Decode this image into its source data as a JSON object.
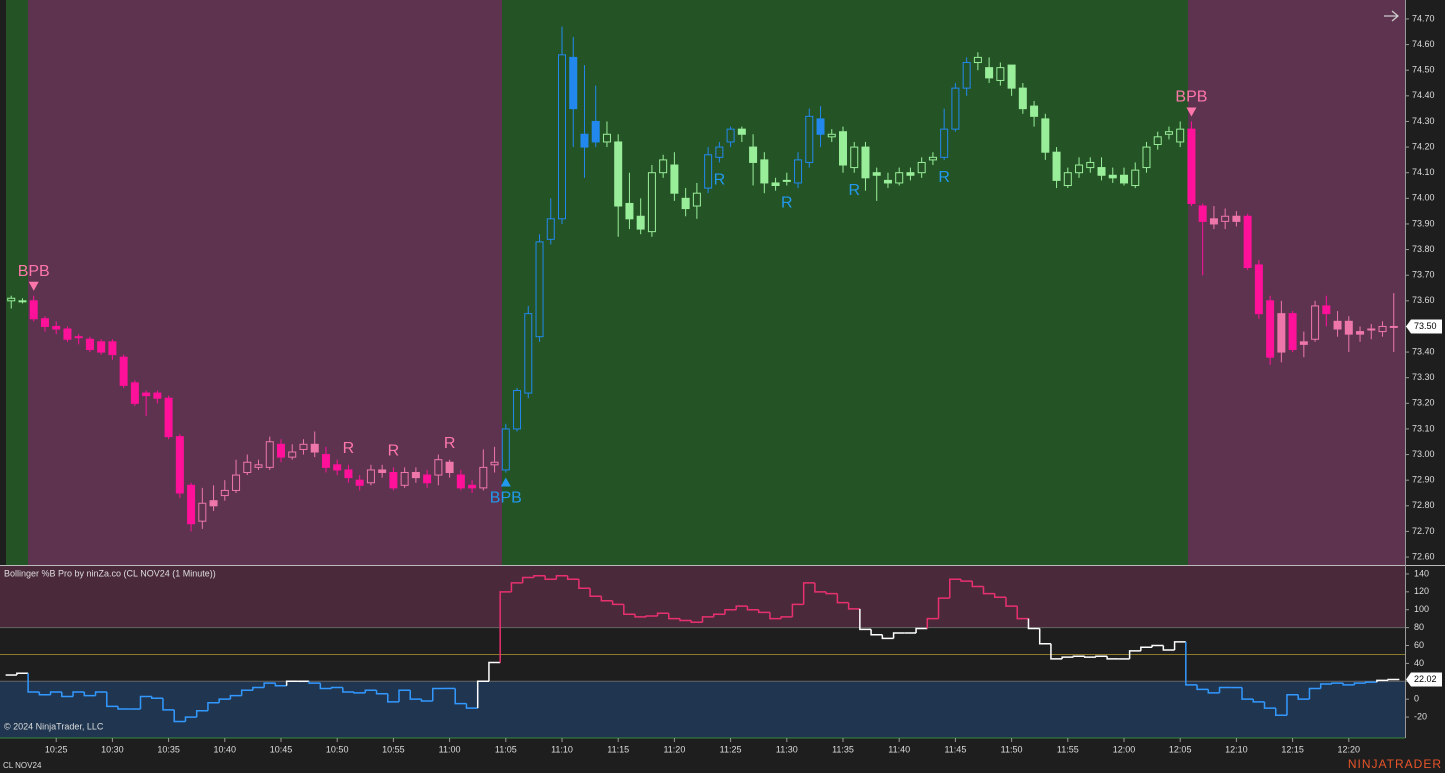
{
  "chart_data": [
    {
      "type": "candlestick",
      "symbol": "CL NOV24",
      "xlim": [
        -1,
        124
      ],
      "ylim": [
        72.569,
        74.774
      ],
      "xticks": [
        {
          "value": 4,
          "label": "10:25"
        },
        {
          "value": 9,
          "label": "10:30"
        },
        {
          "value": 14,
          "label": "10:35"
        },
        {
          "value": 19,
          "label": "10:40"
        },
        {
          "value": 24,
          "label": "10:45"
        },
        {
          "value": 29,
          "label": "10:50"
        },
        {
          "value": 34,
          "label": "10:55"
        },
        {
          "value": 39,
          "label": "11:00"
        },
        {
          "value": 44,
          "label": "11:05"
        },
        {
          "value": 49,
          "label": "11:10"
        },
        {
          "value": 54,
          "label": "11:15"
        },
        {
          "value": 59,
          "label": "11:20"
        },
        {
          "value": 64,
          "label": "11:25"
        },
        {
          "value": 69,
          "label": "11:30"
        },
        {
          "value": 74,
          "label": "11:35"
        },
        {
          "value": 79,
          "label": "11:40"
        },
        {
          "value": 84,
          "label": "11:45"
        },
        {
          "value": 89,
          "label": "11:50"
        },
        {
          "value": 94,
          "label": "11:55"
        },
        {
          "value": 99,
          "label": "12:00"
        },
        {
          "value": 104,
          "label": "12:05"
        },
        {
          "value": 109,
          "label": "12:10"
        },
        {
          "value": 114,
          "label": "12:15"
        },
        {
          "value": 119,
          "label": "12:20"
        }
      ],
      "yticks": [
        {
          "value": 72.6,
          "label": "72.60"
        },
        {
          "value": 72.7,
          "label": "72.70"
        },
        {
          "value": 72.8,
          "label": "72.80"
        },
        {
          "value": 72.9,
          "label": "72.90"
        },
        {
          "value": 73.0,
          "label": "73.00"
        },
        {
          "value": 73.1,
          "label": "73.10"
        },
        {
          "value": 73.2,
          "label": "73.20"
        },
        {
          "value": 73.3,
          "label": "73.30"
        },
        {
          "value": 73.4,
          "label": "73.40"
        },
        {
          "value": 73.5,
          "label": "73.50"
        },
        {
          "value": 73.6,
          "label": "73.60"
        },
        {
          "value": 73.7,
          "label": "73.70"
        },
        {
          "value": 73.8,
          "label": "73.80"
        },
        {
          "value": 73.9,
          "label": "73.90"
        },
        {
          "value": 74.0,
          "label": "74.00"
        },
        {
          "value": 74.1,
          "label": "74.10"
        },
        {
          "value": 74.2,
          "label": "74.20"
        },
        {
          "value": 74.3,
          "label": "74.30"
        },
        {
          "value": 74.4,
          "label": "74.40"
        },
        {
          "value": 74.5,
          "label": "74.50"
        },
        {
          "value": 74.6,
          "label": "74.60"
        },
        {
          "value": 74.7,
          "label": "74.70"
        }
      ],
      "open": [
        73.6,
        73.6,
        73.6,
        73.53,
        73.5,
        73.49,
        73.46,
        73.45,
        73.44,
        73.44,
        73.38,
        73.28,
        73.24,
        73.24,
        73.22,
        73.07,
        72.88,
        72.74,
        72.82,
        72.84,
        72.86,
        72.93,
        72.95,
        72.95,
        73.04,
        72.99,
        73.02,
        73.04,
        73.0,
        72.96,
        72.94,
        72.9,
        72.89,
        72.94,
        72.93,
        72.88,
        72.93,
        72.92,
        72.92,
        72.97,
        72.92,
        72.88,
        72.87,
        72.96,
        72.94,
        73.1,
        73.24,
        73.46,
        73.84,
        73.92,
        74.55,
        74.25,
        74.3,
        74.22,
        74.22,
        73.98,
        73.93,
        73.87,
        74.1,
        74.13,
        74.0,
        73.97,
        74.04,
        74.16,
        74.22,
        74.27,
        74.2,
        74.15,
        74.06,
        74.07,
        74.06,
        74.14,
        74.31,
        74.24,
        74.26,
        74.12,
        74.2,
        74.1,
        74.07,
        74.06,
        74.1,
        74.1,
        74.15,
        74.16,
        74.27,
        74.43,
        74.53,
        74.51,
        74.46,
        74.52,
        74.43,
        74.36,
        74.31,
        74.18,
        74.05,
        74.1,
        74.12,
        74.12,
        74.09,
        74.09,
        74.05,
        74.12,
        74.21,
        74.25,
        74.22,
        74.27,
        73.97,
        73.92,
        73.91,
        73.93,
        73.93,
        73.74,
        73.6,
        73.55,
        73.55,
        73.44,
        73.45,
        73.58,
        73.52,
        73.52,
        73.48,
        73.49,
        73.48,
        73.5
      ],
      "high": [
        73.62,
        73.61,
        73.62,
        73.54,
        73.52,
        73.5,
        73.47,
        73.46,
        73.45,
        73.45,
        73.39,
        73.29,
        73.25,
        73.25,
        73.23,
        73.08,
        72.89,
        72.87,
        72.88,
        72.9,
        72.98,
        73.0,
        72.98,
        73.07,
        73.06,
        73.04,
        73.06,
        73.09,
        73.03,
        72.98,
        72.96,
        72.92,
        72.96,
        72.96,
        72.95,
        72.95,
        72.95,
        72.94,
        73.0,
        72.98,
        72.94,
        72.9,
        73.02,
        73.03,
        73.12,
        73.26,
        73.58,
        73.86,
        74.0,
        74.67,
        74.63,
        74.52,
        74.44,
        74.3,
        74.25,
        74.1,
        74.0,
        74.13,
        74.17,
        74.18,
        74.04,
        74.06,
        74.2,
        74.22,
        74.28,
        74.28,
        74.25,
        74.18,
        74.08,
        74.1,
        74.18,
        74.35,
        74.36,
        74.27,
        74.28,
        74.22,
        74.22,
        74.12,
        74.1,
        74.12,
        74.12,
        74.16,
        74.18,
        74.35,
        74.45,
        74.55,
        74.57,
        74.55,
        74.53,
        74.52,
        74.45,
        74.38,
        74.33,
        74.2,
        74.12,
        74.16,
        74.16,
        74.16,
        74.12,
        74.12,
        74.14,
        74.22,
        74.26,
        74.28,
        74.3,
        74.3,
        73.98,
        73.97,
        73.96,
        73.95,
        73.94,
        73.76,
        73.62,
        73.6,
        73.56,
        73.48,
        73.6,
        73.62,
        73.56,
        73.54,
        73.5,
        73.51,
        73.52,
        73.63
      ],
      "low": [
        73.57,
        73.59,
        73.52,
        73.48,
        73.47,
        73.44,
        73.43,
        73.4,
        73.39,
        73.37,
        73.26,
        73.19,
        73.15,
        73.2,
        73.06,
        72.83,
        72.7,
        72.71,
        72.78,
        72.82,
        72.85,
        72.92,
        72.94,
        72.94,
        72.97,
        72.98,
        73.0,
        72.99,
        72.93,
        72.92,
        72.89,
        72.86,
        72.88,
        72.91,
        72.86,
        72.87,
        72.89,
        72.87,
        72.88,
        72.91,
        72.86,
        72.85,
        72.86,
        72.93,
        72.93,
        73.09,
        73.22,
        73.44,
        73.82,
        73.9,
        74.2,
        74.08,
        74.2,
        74.2,
        73.85,
        73.88,
        73.86,
        73.85,
        74.08,
        73.99,
        73.93,
        73.92,
        74.02,
        74.14,
        74.2,
        74.22,
        74.05,
        74.02,
        74.03,
        74.05,
        74.04,
        74.12,
        74.2,
        74.22,
        74.1,
        74.1,
        74.03,
        73.99,
        74.04,
        74.05,
        74.07,
        74.08,
        74.13,
        74.15,
        74.26,
        74.4,
        74.5,
        74.45,
        74.44,
        74.4,
        74.33,
        74.28,
        74.15,
        74.04,
        74.04,
        74.08,
        74.1,
        74.07,
        74.06,
        74.05,
        74.04,
        74.1,
        74.19,
        74.23,
        74.2,
        73.97,
        73.7,
        73.88,
        73.88,
        73.89,
        73.72,
        73.53,
        73.35,
        73.36,
        73.4,
        73.38,
        73.44,
        73.5,
        73.46,
        73.4,
        73.44,
        73.45,
        73.46,
        73.4
      ],
      "close": [
        73.61,
        73.6,
        73.53,
        73.5,
        73.49,
        73.45,
        73.46,
        73.41,
        73.4,
        73.39,
        73.27,
        73.2,
        73.23,
        73.22,
        73.07,
        72.85,
        72.73,
        72.81,
        72.8,
        72.86,
        72.92,
        72.97,
        72.96,
        73.05,
        72.99,
        73.01,
        73.04,
        73.01,
        72.95,
        72.94,
        72.91,
        72.88,
        72.94,
        72.93,
        72.87,
        72.93,
        72.91,
        72.89,
        72.98,
        72.93,
        72.87,
        72.87,
        72.95,
        72.97,
        73.1,
        73.25,
        73.55,
        73.83,
        73.92,
        74.56,
        74.35,
        74.2,
        74.22,
        74.25,
        73.97,
        73.92,
        73.88,
        74.1,
        74.15,
        74.02,
        73.96,
        74.02,
        74.17,
        74.2,
        74.27,
        74.25,
        74.14,
        74.06,
        74.05,
        74.07,
        74.15,
        74.32,
        74.25,
        74.25,
        74.13,
        74.2,
        74.08,
        74.09,
        74.06,
        74.1,
        74.09,
        74.14,
        74.16,
        74.27,
        74.43,
        74.53,
        74.55,
        74.47,
        74.51,
        74.43,
        74.35,
        74.32,
        74.18,
        74.07,
        74.1,
        74.13,
        74.14,
        74.09,
        74.08,
        74.06,
        74.11,
        74.2,
        74.24,
        74.26,
        74.27,
        73.98,
        73.91,
        73.9,
        73.93,
        73.91,
        73.73,
        73.55,
        73.38,
        73.4,
        73.41,
        73.43,
        73.58,
        73.55,
        73.49,
        73.47,
        73.47,
        73.49,
        73.5,
        73.5
      ],
      "value_labels": {
        "last_close": "73.50"
      },
      "colors": [
        "#9e9",
        "#9e9",
        "#f19",
        "#f19",
        "#f19",
        "#f19",
        "#f19",
        "#f19",
        "#f19",
        "#f19",
        "#f19",
        "#f19",
        "#f19",
        "#f19",
        "#f19",
        "#f19",
        "#f19",
        "#e7a",
        "#e7a",
        "#e7a",
        "#e7a",
        "#e7a",
        "#e7a",
        "#e7a",
        "#f19",
        "#e7a",
        "#e7a",
        "#e7a",
        "#f19",
        "#f19",
        "#f19",
        "#f19",
        "#e7a",
        "#e7a",
        "#f19",
        "#e7a",
        "#e7a",
        "#f19",
        "#e7a",
        "#e7a",
        "#f19",
        "#f19",
        "#e7a",
        "#e7a",
        "#28e",
        "#28e",
        "#28e",
        "#28e",
        "#28e",
        "#28e",
        "#28e",
        "#28e",
        "#28e",
        "#9e9",
        "#9e9",
        "#9e9",
        "#9e9",
        "#9e9",
        "#9e9",
        "#9e9",
        "#9e9",
        "#9e9",
        "#28e",
        "#28e",
        "#28e",
        "#9e9",
        "#9e9",
        "#9e9",
        "#9e9",
        "#9e9",
        "#28e",
        "#28e",
        "#28e",
        "#9e9",
        "#9e9",
        "#9e9",
        "#9e9",
        "#9e9",
        "#9e9",
        "#9e9",
        "#9e9",
        "#9e9",
        "#9e9",
        "#28e",
        "#28e",
        "#28e",
        "#9e9",
        "#9e9",
        "#9e9",
        "#9e9",
        "#9e9",
        "#9e9",
        "#9e9",
        "#9e9",
        "#9e9",
        "#9e9",
        "#9e9",
        "#9e9",
        "#9e9",
        "#9e9",
        "#9e9",
        "#9e9",
        "#9e9",
        "#9e9",
        "#9e9",
        "#f19",
        "#f19",
        "#e7a",
        "#e7a",
        "#e7a",
        "#f19",
        "#f19",
        "#f19",
        "#e7a",
        "#f19",
        "#e7a",
        "#e7a",
        "#f19",
        "#e7a",
        "#e7a",
        "#e7a",
        "#e7a",
        "#e7a",
        "#e7a"
      ],
      "annotations": [
        {
          "text": "BPB",
          "x": 2,
          "direction": "down",
          "color": "#f7a"
        },
        {
          "text": "R",
          "x": 30,
          "direction": "up-label",
          "color": "#f7a"
        },
        {
          "text": "R",
          "x": 34,
          "direction": "up-label",
          "color": "#f7a"
        },
        {
          "text": "R",
          "x": 39,
          "direction": "up-label",
          "color": "#f7a"
        },
        {
          "text": "BPB",
          "x": 44,
          "direction": "up",
          "color": "#29e"
        },
        {
          "text": "R",
          "x": 63,
          "direction": "down-label",
          "color": "#29e"
        },
        {
          "text": "R",
          "x": 69,
          "direction": "down-label",
          "color": "#29e"
        },
        {
          "text": "R",
          "x": 75,
          "direction": "down-label",
          "color": "#29e"
        },
        {
          "text": "R",
          "x": 83,
          "direction": "down-label",
          "color": "#29e"
        },
        {
          "text": "BPB",
          "x": 105,
          "direction": "down",
          "color": "#f7a"
        }
      ]
    },
    {
      "type": "step-line",
      "title": "Bollinger %B Pro by ninZa.co (CL NOV24 (1 Minute))",
      "xlim": [
        -1,
        124
      ],
      "ylim": [
        -43.4,
        150
      ],
      "yticks": [
        -20,
        0,
        20,
        40,
        60,
        80,
        100,
        120,
        140
      ],
      "levels": [
        80,
        50,
        20
      ],
      "colors": {
        "above": "#e8306e",
        "middle": "#ffffff",
        "below": "#3399ff"
      },
      "values": [
        27,
        29,
        8,
        5,
        8,
        3,
        8,
        4,
        8,
        -8,
        -11,
        -11,
        3,
        1,
        -12,
        -25,
        -20,
        -13,
        -4,
        0,
        4,
        10,
        13,
        18,
        15,
        20,
        20,
        18,
        12,
        13,
        8,
        7,
        10,
        6,
        -3,
        10,
        0,
        -2,
        12,
        12,
        -5,
        -10,
        20,
        41,
        120,
        130,
        136,
        138,
        134,
        138,
        134,
        124,
        115,
        110,
        106,
        95,
        92,
        93,
        96,
        90,
        88,
        86,
        92,
        95,
        100,
        104,
        100,
        97,
        90,
        92,
        106,
        130,
        120,
        118,
        108,
        101,
        78,
        72,
        68,
        74,
        74,
        79,
        90,
        113,
        134,
        132,
        126,
        118,
        114,
        104,
        90,
        79,
        62,
        45,
        47,
        48,
        47,
        48,
        45,
        45,
        54,
        58,
        60,
        55,
        64,
        16,
        11,
        7,
        13,
        13,
        0,
        -3,
        -10,
        -18,
        5,
        0,
        12,
        17,
        18,
        16,
        18,
        19,
        21,
        22.02
      ]
    }
  ],
  "footer": {
    "copyright": "© 2024 NinjaTrader, LLC",
    "instrument": "CL NOV24",
    "brand": "NINJATRADER"
  }
}
